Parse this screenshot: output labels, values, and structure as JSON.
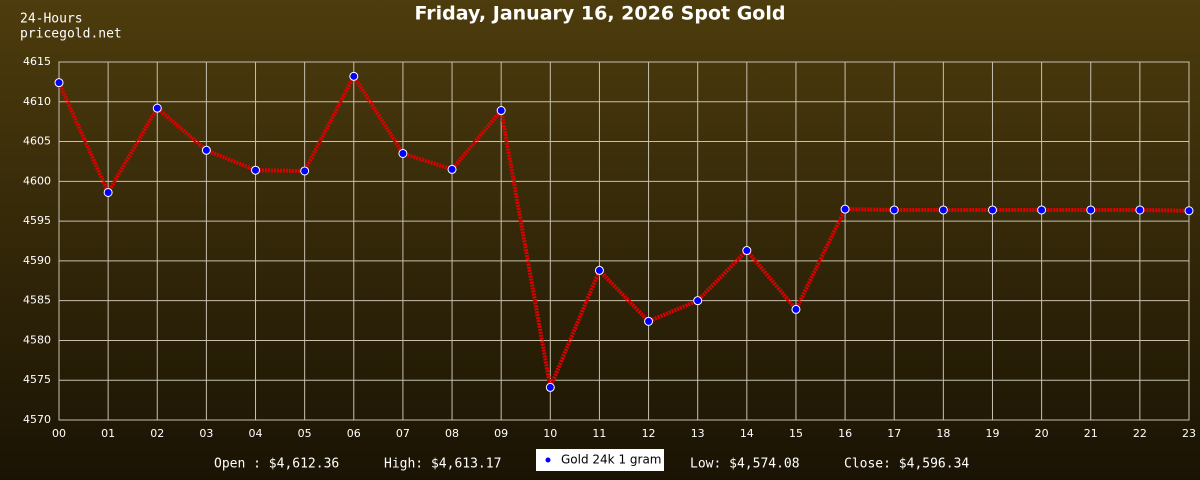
{
  "chart_data": {
    "type": "line",
    "title": "Friday, January 16, 2026 Spot Gold",
    "corner_text": [
      "24-Hours",
      "pricegold.net"
    ],
    "stats": [
      "Open : $4,612.36",
      "High: $4,613.17",
      "Low: $4,574.08",
      "Close: $4,596.34"
    ],
    "categories": [
      "00",
      "01",
      "02",
      "03",
      "04",
      "05",
      "06",
      "07",
      "08",
      "09",
      "10",
      "11",
      "12",
      "13",
      "14",
      "15",
      "16",
      "17",
      "18",
      "19",
      "20",
      "21",
      "22",
      "23"
    ],
    "series": [
      {
        "name": "Gold 24k 1 gram",
        "color": "#e00000",
        "marker_color": "#0000ff",
        "values": [
          4612.4,
          4598.6,
          4609.2,
          4603.9,
          4601.4,
          4601.3,
          4613.2,
          4603.5,
          4601.5,
          4608.9,
          4574.1,
          4588.8,
          4582.4,
          4585.0,
          4591.3,
          4583.9,
          4596.5,
          4596.4,
          4596.4,
          4596.4,
          4596.4,
          4596.4,
          4596.4,
          4596.3
        ]
      }
    ],
    "ylim": [
      4570,
      4615
    ],
    "yticks": [
      4570,
      4575,
      4580,
      4585,
      4590,
      4595,
      4600,
      4605,
      4610,
      4615
    ],
    "grid": true
  }
}
